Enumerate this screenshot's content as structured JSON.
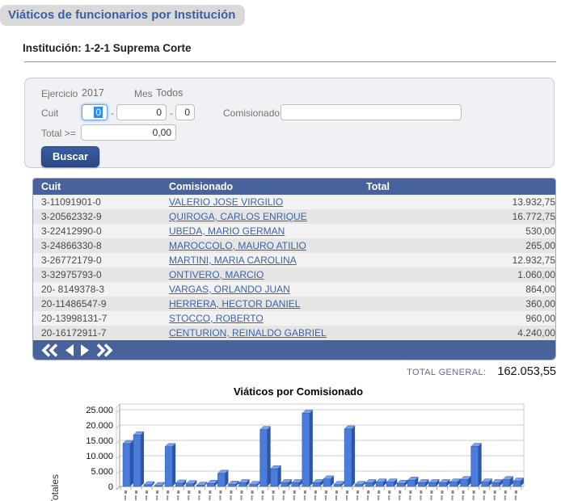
{
  "page": {
    "title": "Viáticos de funcionarios por Institución",
    "institution_heading": "Institución: 1-2-1 Suprema Corte"
  },
  "filters": {
    "ejercicio_label": "Ejercicio",
    "ejercicio_value": "2017",
    "mes_label": "Mes",
    "mes_value": "Todos",
    "cuit_label": "Cuit",
    "cuit_part1": "0",
    "cuit_part2": "0",
    "cuit_part3": "0",
    "separator": "-",
    "comisionado_label": "Comisionado",
    "comisionado_value": "",
    "total_label": "Total >=",
    "total_value": "0,00",
    "search_button": "Buscar"
  },
  "table": {
    "headers": [
      "Cuit",
      "Comisionado",
      "Total"
    ],
    "rows": [
      {
        "cuit": "3-11091901-0",
        "comisionado": "VALERIO JOSE VIRGILIO",
        "total": "13.932,75"
      },
      {
        "cuit": "3-20562332-9",
        "comisionado": "QUIROGA, CARLOS ENRIQUE",
        "total": "16.772,75"
      },
      {
        "cuit": "3-22412990-0",
        "comisionado": "UBEDA, MARIO GERMAN",
        "total": "530,00"
      },
      {
        "cuit": "3-24866330-8",
        "comisionado": "MAROCCOLO, MAURO ATILIO",
        "total": "265,00"
      },
      {
        "cuit": "3-26772179-0",
        "comisionado": "MARTINI, MARIA CAROLINA",
        "total": "12.932,75"
      },
      {
        "cuit": "3-32975793-0",
        "comisionado": "ONTIVERO, MARCIO",
        "total": "1.060,00"
      },
      {
        "cuit": "20- 8149378-3",
        "comisionado": "VARGAS, ORLANDO JUAN",
        "total": "864,00"
      },
      {
        "cuit": "20-11486547-9",
        "comisionado": "HERRERA, HECTOR DANIEL",
        "total": "360,00"
      },
      {
        "cuit": "20-13998131-7",
        "comisionado": "STOCCO, ROBERTO",
        "total": "960,00"
      },
      {
        "cuit": "20-16172911-7",
        "comisionado": "CENTURION, REINALDO GABRIEL",
        "total": "4.240,00"
      }
    ]
  },
  "pagination": {
    "icons": [
      "first-page-icon",
      "previous-page-icon",
      "next-page-icon",
      "last-page-icon"
    ]
  },
  "summary": {
    "total_general_label": "TOTAL GENERAL:",
    "total_general_value": "162.053,55"
  },
  "chart_data": {
    "type": "bar",
    "title": "Viáticos por Comisionado",
    "ylabel": "Totales",
    "ylim": [
      0,
      25000
    ],
    "ytick_labels": [
      "0",
      "5.000",
      "10.000",
      "15.000",
      "20.000",
      "25.000"
    ],
    "grid": true,
    "style_3d": true,
    "x_labels_clipped": true,
    "values": [
      13932.75,
      16772.75,
      530,
      265,
      12932.75,
      1060,
      864,
      360,
      960,
      4240,
      700,
      1200,
      600,
      18500,
      5736.3,
      1200,
      1200,
      23800,
      1200,
      2400,
      600,
      18700,
      600,
      1200,
      1400,
      1400,
      1000,
      2000,
      1200,
      1200,
      1200,
      1400,
      2200,
      13000,
      1400,
      1200,
      2200,
      1700
    ]
  },
  "colors": {
    "header_blue": "#48639C",
    "link_blue": "#3A64A8",
    "title_blue": "#3A5FA5",
    "badge_gray": "#D9D9D9",
    "button_blue": "#2F4F96",
    "bar_front": "#4A7CDB",
    "bar_top": "#7AA2EA",
    "bar_side": "#2D54A5",
    "row_odd": "#F2F2F2",
    "row_even": "#E5E5E5"
  }
}
